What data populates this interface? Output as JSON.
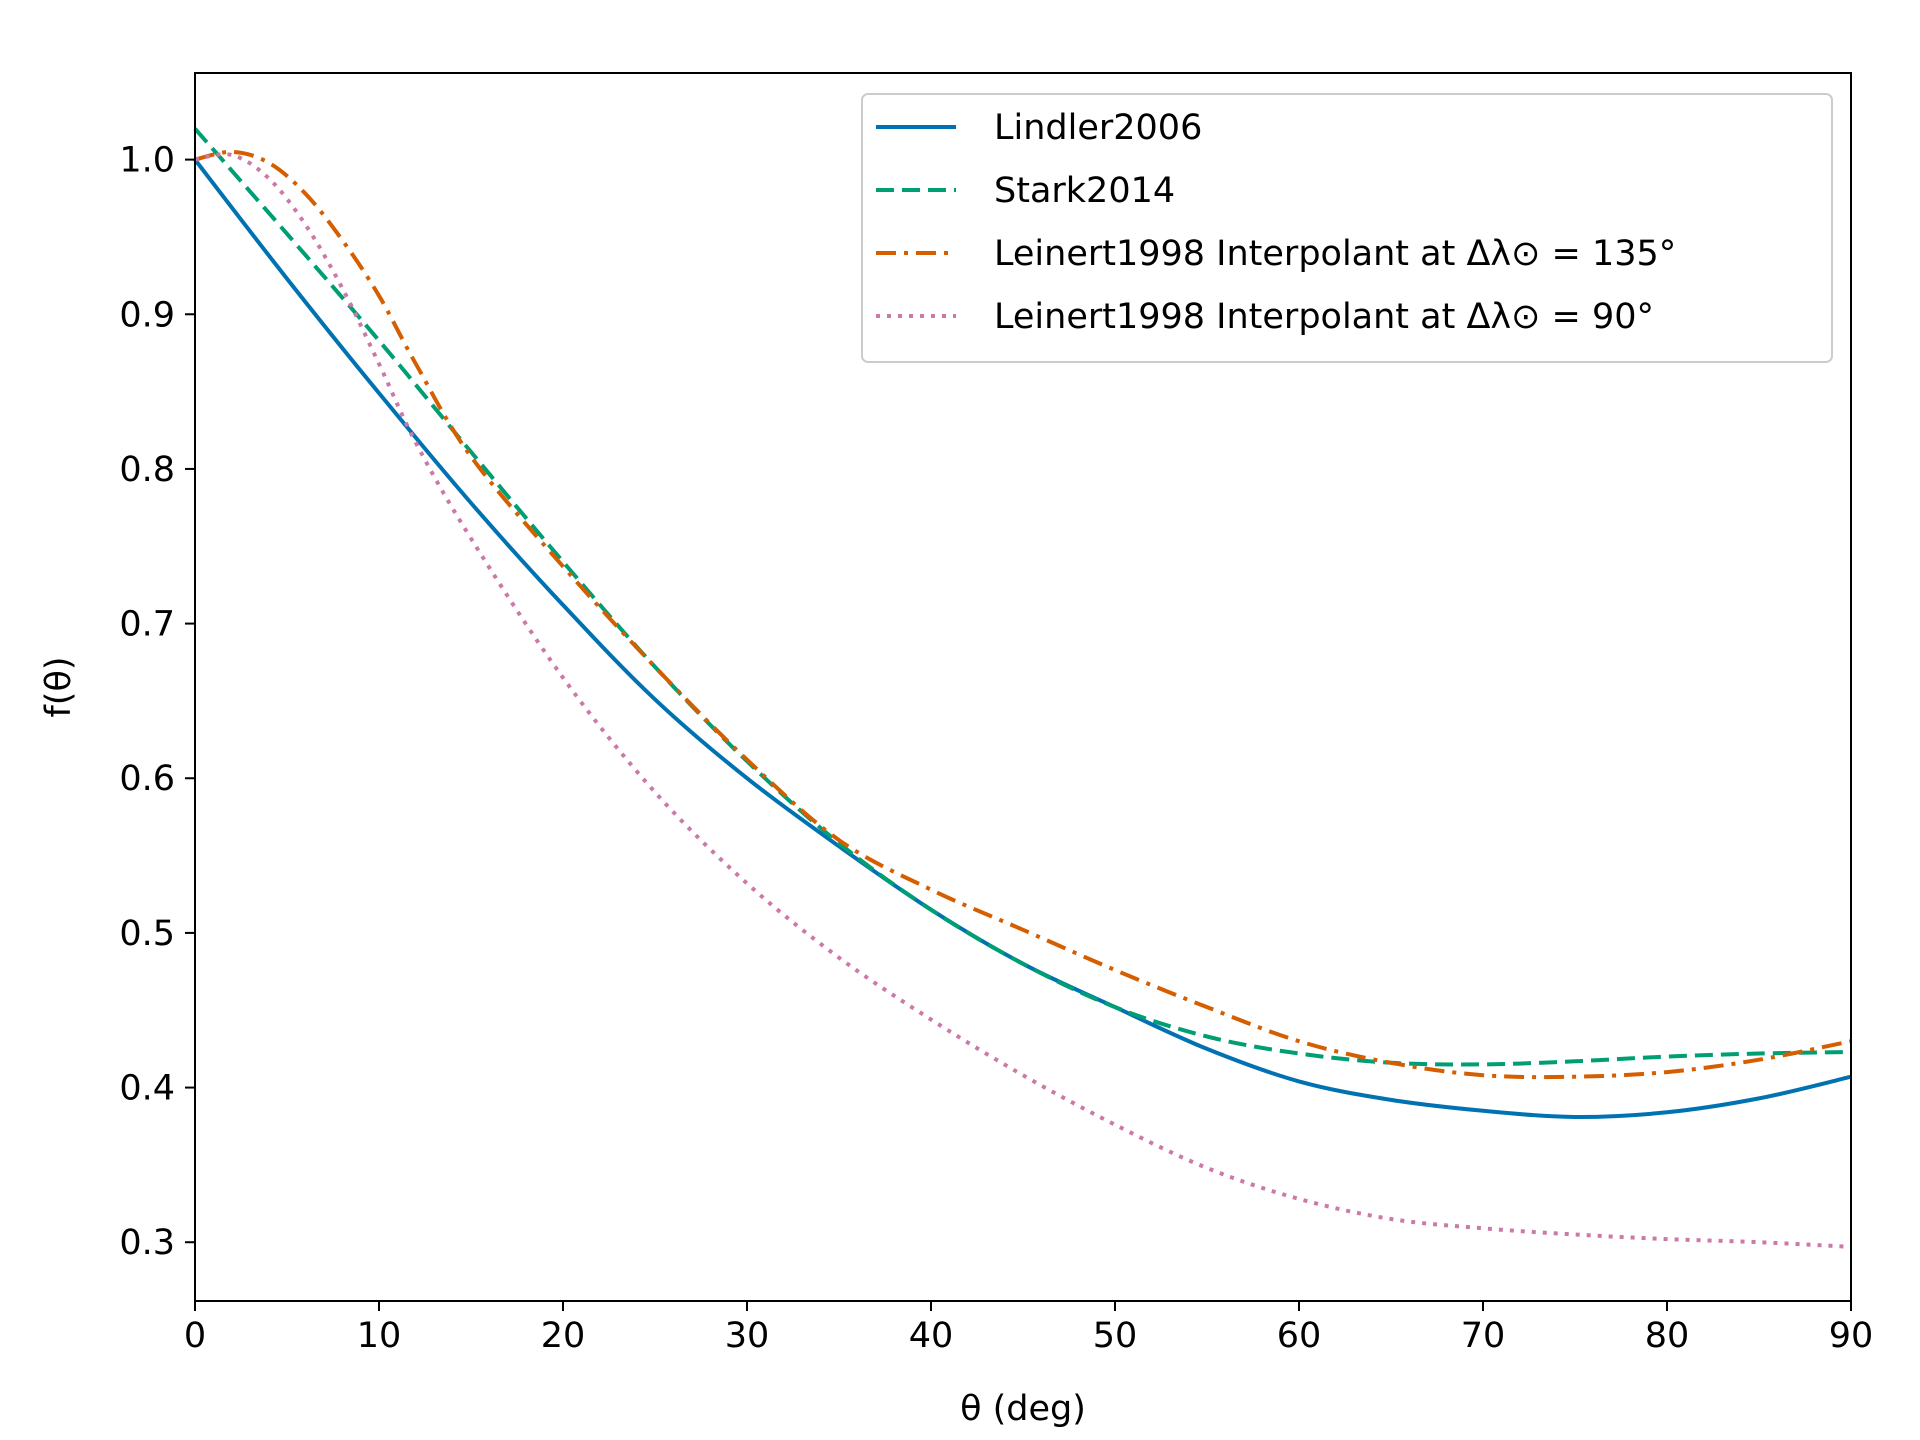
{
  "chart_data": {
    "type": "line",
    "xlabel": "θ (deg)",
    "ylabel": "f(θ)",
    "xlim": [
      0,
      90
    ],
    "ylim": [
      0.262,
      1.056
    ],
    "xticks": [
      "0",
      "10",
      "20",
      "30",
      "40",
      "50",
      "60",
      "70",
      "80",
      "90"
    ],
    "yticks": [
      "0.3",
      "0.4",
      "0.5",
      "0.6",
      "0.7",
      "0.8",
      "0.9",
      "1.0"
    ],
    "grid": false,
    "legend_position": "top-right",
    "series": [
      {
        "name": "Lindler2006",
        "color": "#0072b2",
        "style": "solid",
        "x": [
          0,
          5,
          10,
          15,
          20,
          25,
          30,
          35,
          40,
          45,
          50,
          55,
          60,
          65,
          70,
          75,
          80,
          85,
          90
        ],
        "y": [
          1.0,
          0.923,
          0.849,
          0.778,
          0.712,
          0.651,
          0.6,
          0.556,
          0.515,
          0.48,
          0.452,
          0.425,
          0.404,
          0.392,
          0.385,
          0.381,
          0.384,
          0.393,
          0.407
        ]
      },
      {
        "name": "Stark2014",
        "color": "#009e73",
        "style": "dashed",
        "x": [
          0,
          5,
          10,
          15,
          20,
          25,
          30,
          35,
          40,
          45,
          50,
          55,
          60,
          65,
          70,
          75,
          80,
          85,
          90
        ],
        "y": [
          1.02,
          0.952,
          0.883,
          0.811,
          0.74,
          0.672,
          0.611,
          0.558,
          0.515,
          0.48,
          0.452,
          0.433,
          0.422,
          0.416,
          0.415,
          0.417,
          0.42,
          0.422,
          0.423
        ]
      },
      {
        "name": "Leinert1998 Interpolant at Δλ⊙ = 135°",
        "color": "#d55e00",
        "style": "dashdot",
        "x": [
          0,
          2,
          4,
          6,
          8,
          10,
          12,
          15,
          20,
          25,
          30,
          35,
          40,
          45,
          50,
          55,
          60,
          65,
          70,
          75,
          80,
          85,
          90
        ],
        "y": [
          1.0,
          1.005,
          0.998,
          0.978,
          0.948,
          0.912,
          0.868,
          0.808,
          0.737,
          0.672,
          0.612,
          0.56,
          0.528,
          0.502,
          0.476,
          0.452,
          0.43,
          0.416,
          0.408,
          0.407,
          0.41,
          0.418,
          0.43
        ]
      },
      {
        "name": "Leinert1998 Interpolant at Δλ⊙ = 90°",
        "color": "#cc79a7",
        "style": "dotted",
        "x": [
          0,
          2,
          4,
          6,
          8,
          10,
          12,
          15,
          20,
          25,
          30,
          35,
          40,
          45,
          50,
          55,
          60,
          65,
          70,
          75,
          80,
          85,
          90
        ],
        "y": [
          1.0,
          1.003,
          0.988,
          0.958,
          0.917,
          0.868,
          0.817,
          0.755,
          0.665,
          0.591,
          0.532,
          0.484,
          0.444,
          0.408,
          0.376,
          0.348,
          0.328,
          0.315,
          0.309,
          0.305,
          0.302,
          0.3,
          0.297
        ]
      }
    ]
  }
}
